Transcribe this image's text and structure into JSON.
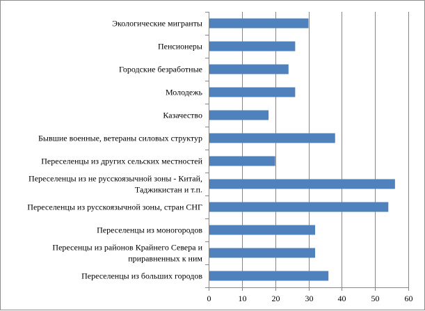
{
  "chart_data": {
    "type": "bar",
    "orientation": "horizontal",
    "categories": [
      "Экологические мигранты",
      "Пенсионеры",
      "Городские безработные",
      "Молодежь",
      "Казачество",
      "Бывшие военные, ветераны силовых структур",
      "Переселенцы из других сельских местностей",
      "Переселенцы из не русскоязычной зоны - Китай, Таджикистан и т.п.",
      "Переселенцы из русскоязычной зоны, стран СНГ",
      "Переселенцы из моногородов",
      "Пересенцы из районов Крайнего Севера и приравненных к ним",
      "Переселенцы из больших городов"
    ],
    "category_lines": [
      [
        "Экологические мигранты"
      ],
      [
        "Пенсионеры"
      ],
      [
        "Городские безработные"
      ],
      [
        "Молодежь"
      ],
      [
        "Казачество"
      ],
      [
        "Бывшие военные, ветераны силовых структур"
      ],
      [
        "Переселенцы из других сельских местностей"
      ],
      [
        "Переселенцы из не русскоязычной зоны - Китай,",
        "Таджикистан и т.п."
      ],
      [
        "Переселенцы из русскоязычной зоны, стран СНГ"
      ],
      [
        "Переселенцы из моногородов"
      ],
      [
        "Пересенцы из районов Крайнего Севера и",
        "приравненных к ним"
      ],
      [
        "Переселенцы из больших городов"
      ]
    ],
    "values": [
      30,
      26,
      24,
      26,
      18,
      38,
      20,
      56,
      54,
      32,
      32,
      36
    ],
    "title": "",
    "xlabel": "",
    "ylabel": "",
    "xlim": [
      0,
      60
    ],
    "ticks": [
      0,
      10,
      20,
      30,
      40,
      50,
      60
    ],
    "grid": "vertical",
    "legend": "none",
    "bar_color": "#4f81bd",
    "grid_color": "#868686"
  }
}
